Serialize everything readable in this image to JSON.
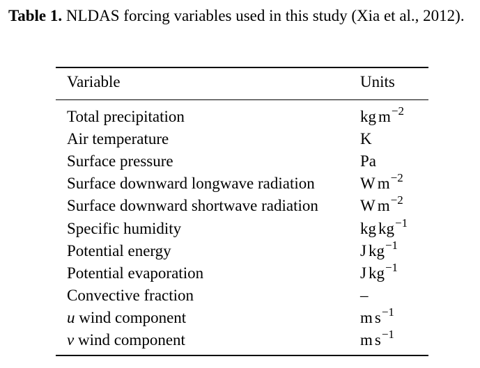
{
  "caption": {
    "label": "Table 1.",
    "text": " NLDAS forcing variables used in this study (Xia et al., 2012)."
  },
  "table": {
    "headers": [
      "Variable",
      "Units"
    ],
    "rows": [
      {
        "variable": "Total precipitation",
        "unit": [
          "kg",
          "m",
          "−2"
        ]
      },
      {
        "variable": "Air temperature",
        "unit": [
          "K"
        ]
      },
      {
        "variable": "Surface pressure",
        "unit": [
          "Pa"
        ]
      },
      {
        "variable": "Surface downward longwave radiation",
        "unit": [
          "W",
          "m",
          "−2"
        ]
      },
      {
        "variable": "Surface downward shortwave radiation",
        "unit": [
          "W",
          "m",
          "−2"
        ]
      },
      {
        "variable": "Specific humidity",
        "unit": [
          "kg",
          "kg",
          "−1"
        ]
      },
      {
        "variable": "Potential energy",
        "unit": [
          "J",
          "kg",
          "−1"
        ]
      },
      {
        "variable": "Potential evaporation",
        "unit": [
          "J",
          "kg",
          "−1"
        ]
      },
      {
        "variable": "Convective fraction",
        "unit": [
          "–"
        ]
      },
      {
        "variable_symbol": "u",
        "variable": " wind component",
        "unit": [
          "m",
          "s",
          "−1"
        ]
      },
      {
        "variable_symbol": "v",
        "variable": " wind component",
        "unit": [
          "m",
          "s",
          "−1"
        ]
      }
    ]
  }
}
